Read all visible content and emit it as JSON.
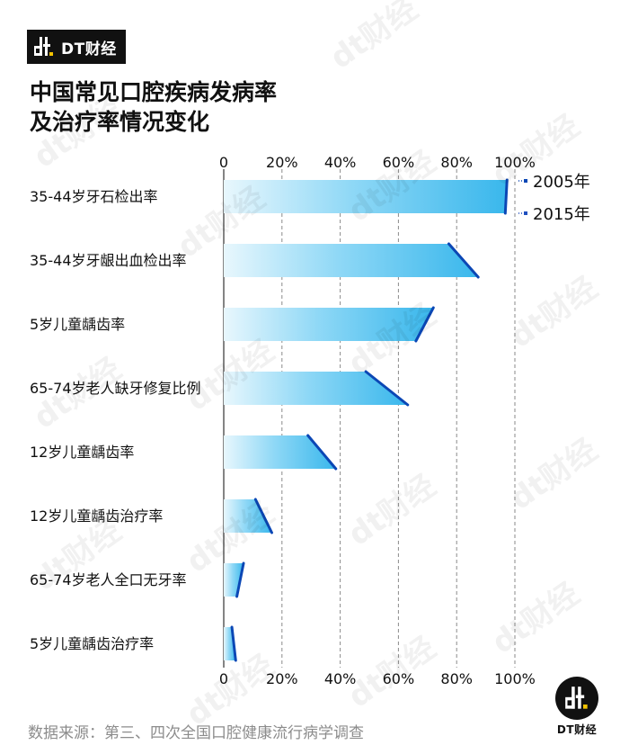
{
  "brand": {
    "name": "DT财经"
  },
  "title_lines": [
    "中国常见口腔疾病发病率",
    "及治疗率情况变化"
  ],
  "source": "数据来源：第三、四次全国口腔健康流行病学调查",
  "watermark_text": "dt财经",
  "colors": {
    "bar_light": "#e8f7fd",
    "bar_mid": "#8fd8f6",
    "bar_dark": "#39b7ec",
    "line_2005": "#0b47b5",
    "line_2015": "#1f4fbf",
    "grid": "#8a8a8a",
    "axis": "#333333"
  },
  "chart_data": {
    "type": "bar",
    "orientation": "horizontal",
    "categories": [
      "35-44岁牙石检出率",
      "35-44岁牙龈出血检出率",
      "5岁儿童龋齿率",
      "65-74岁老人缺牙修复比例",
      "12岁儿童龋齿率",
      "12岁儿童龋齿治疗率",
      "65-74岁老人全口无牙率",
      "5岁儿童龋齿治疗率"
    ],
    "series": [
      {
        "name": "2005年",
        "values": [
          97.3,
          77.3,
          72.0,
          48.8,
          28.9,
          10.9,
          6.8,
          2.8
        ]
      },
      {
        "name": "2015年",
        "values": [
          96.7,
          87.4,
          66.0,
          63.2,
          38.5,
          16.5,
          4.5,
          4.1
        ]
      }
    ],
    "x_ticks": [
      "0",
      "20%",
      "40%",
      "60%",
      "80%",
      "100%"
    ],
    "xlim": [
      0,
      100
    ],
    "legend_position": "top-right",
    "grid": true
  }
}
